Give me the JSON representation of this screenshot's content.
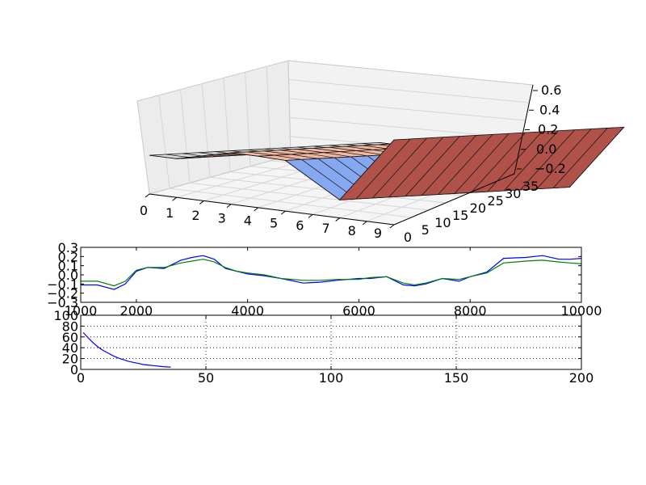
{
  "chart_data": [
    {
      "type": "surface3d",
      "x_ticks": [
        "0",
        "1",
        "2",
        "3",
        "4",
        "5",
        "6",
        "7",
        "8",
        "9"
      ],
      "y_ticks": [
        "0",
        "5",
        "10",
        "15",
        "20",
        "25",
        "30",
        "35"
      ],
      "z_ticks": [
        "−0.2",
        "0.0",
        "0.2",
        "0.4",
        "0.6"
      ],
      "xlim": [
        0,
        9
      ],
      "ylim": [
        0,
        35
      ],
      "zlim": [
        -0.25,
        0.6
      ],
      "ridges": [
        {
          "x": 0,
          "z": 0.02,
          "color": "#dddddd"
        },
        {
          "x": 1,
          "z": 0.02,
          "color": "#dddddd"
        },
        {
          "x": 3,
          "z": 0.18,
          "color": "#f3b9a0"
        },
        {
          "x": 4,
          "z": 0.18,
          "color": "#f3b9a0"
        },
        {
          "x": 5,
          "z": 0.17,
          "color": "#f3b9a0"
        },
        {
          "x": 7,
          "z": -0.24,
          "color": "#86a8f0"
        },
        {
          "x": 9,
          "z": 0.6,
          "color": "#b0524a"
        }
      ],
      "grid": true
    },
    {
      "type": "line",
      "xlim": [
        1000,
        10000
      ],
      "ylim": [
        -0.3,
        0.3
      ],
      "x_ticks": [
        "1000",
        "2000",
        "4000",
        "6000",
        "8000",
        "10000"
      ],
      "y_ticks": [
        "0.3",
        "0.2",
        "0.1",
        "0.0",
        "−0.1",
        "−0.2",
        "−0.3"
      ],
      "series": [
        {
          "color": "#0000ff",
          "x": [
            1000,
            1300,
            1600,
            1800,
            2000,
            2200,
            2500,
            2800,
            3000,
            3200,
            3400,
            3600,
            3800,
            4000,
            4300,
            4600,
            5000,
            5300,
            5600,
            6000,
            6200,
            6500,
            6800,
            7000,
            7200,
            7500,
            7800,
            8000,
            8300,
            8600,
            9000,
            9300,
            9600,
            9800,
            10000
          ],
          "y": [
            -0.11,
            -0.11,
            -0.16,
            -0.1,
            0.04,
            0.08,
            0.07,
            0.16,
            0.19,
            0.21,
            0.17,
            0.07,
            0.04,
            0.01,
            -0.01,
            -0.04,
            -0.09,
            -0.08,
            -0.06,
            -0.04,
            -0.04,
            -0.02,
            -0.11,
            -0.12,
            -0.1,
            -0.04,
            -0.07,
            -0.02,
            0.03,
            0.18,
            0.19,
            0.21,
            0.17,
            0.17,
            0.18
          ]
        },
        {
          "color": "#008000",
          "x": [
            1000,
            1300,
            1600,
            1800,
            2000,
            2200,
            2500,
            2800,
            3000,
            3200,
            3400,
            3600,
            3800,
            4000,
            4300,
            4600,
            5000,
            5300,
            5600,
            6000,
            6200,
            6500,
            6800,
            7000,
            7200,
            7500,
            7800,
            8000,
            8300,
            8600,
            9000,
            9300,
            9600,
            9800,
            10000
          ],
          "y": [
            -0.07,
            -0.07,
            -0.12,
            -0.07,
            0.05,
            0.08,
            0.08,
            0.13,
            0.15,
            0.17,
            0.14,
            0.08,
            0.04,
            0.02,
            0.0,
            -0.04,
            -0.06,
            -0.06,
            -0.05,
            -0.05,
            -0.03,
            -0.02,
            -0.09,
            -0.11,
            -0.09,
            -0.04,
            -0.05,
            -0.02,
            0.02,
            0.13,
            0.15,
            0.16,
            0.14,
            0.13,
            0.12
          ]
        }
      ]
    },
    {
      "type": "line",
      "xlim": [
        0,
        200
      ],
      "ylim": [
        0,
        100
      ],
      "x_ticks": [
        "0",
        "50",
        "100",
        "150",
        "200"
      ],
      "y_ticks": [
        "100",
        "80",
        "60",
        "40",
        "20",
        "0"
      ],
      "grid": true,
      "series": [
        {
          "color": "#0000ff",
          "x": [
            1,
            3,
            5,
            7,
            9,
            11,
            13,
            15,
            17,
            19,
            21,
            23,
            25,
            27,
            29,
            31,
            33,
            35,
            36
          ],
          "y": [
            68,
            58,
            49,
            41,
            35,
            30,
            25,
            21,
            18,
            15,
            13,
            11,
            9,
            8,
            7,
            6,
            5,
            4.5,
            4.2
          ]
        }
      ]
    }
  ]
}
